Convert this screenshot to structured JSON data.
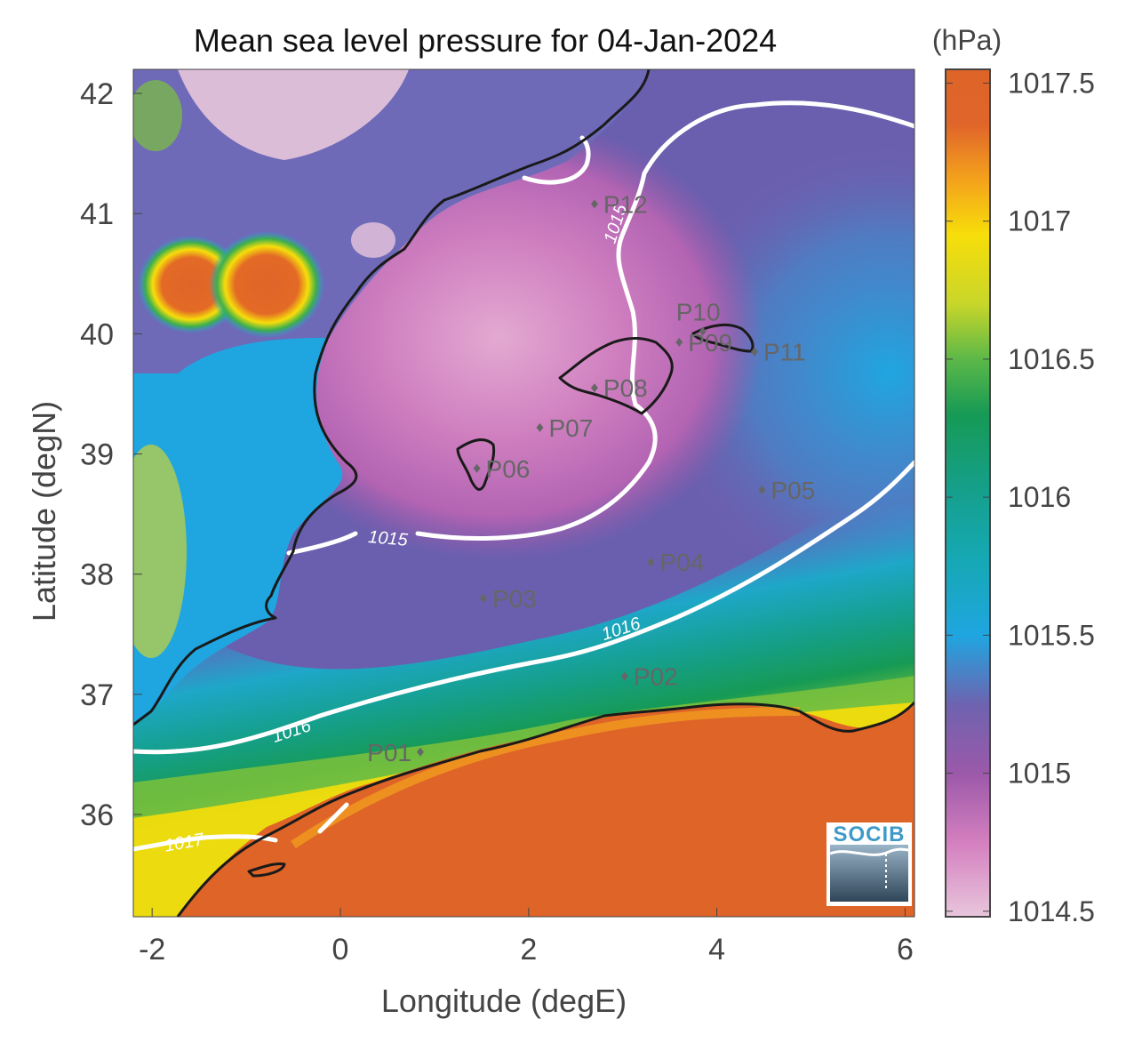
{
  "title": "Mean sea level pressure for 04-Jan-2024",
  "x_axis": {
    "label": "Longitude (degE)",
    "ticks": [
      "-2",
      "0",
      "2",
      "4",
      "6"
    ],
    "values": [
      -2,
      0,
      2,
      4,
      6
    ],
    "range": [
      -2.2,
      6.1
    ]
  },
  "y_axis": {
    "label": "Latitude (degN)",
    "ticks": [
      "36",
      "37",
      "38",
      "39",
      "40",
      "41",
      "42"
    ],
    "values": [
      36,
      37,
      38,
      39,
      40,
      41,
      42
    ],
    "range": [
      35.15,
      42.2
    ]
  },
  "colorbar": {
    "unit": "(hPa)",
    "ticks": [
      "1014.5",
      "1015",
      "1015.5",
      "1016",
      "1016.5",
      "1017",
      "1017.5"
    ],
    "values": [
      1014.5,
      1015,
      1015.5,
      1016,
      1016.5,
      1017,
      1017.5
    ],
    "range": [
      1014.48,
      1017.55
    ],
    "stops": [
      {
        "value": 1014.48,
        "color": "#e8c6dc"
      },
      {
        "value": 1014.75,
        "color": "#d47fbf"
      },
      {
        "value": 1015.0,
        "color": "#9b59a9"
      },
      {
        "value": 1015.25,
        "color": "#6e63b0"
      },
      {
        "value": 1015.5,
        "color": "#1fa6e0"
      },
      {
        "value": 1015.8,
        "color": "#15a8b0"
      },
      {
        "value": 1016.0,
        "color": "#15a090"
      },
      {
        "value": 1016.3,
        "color": "#169a55"
      },
      {
        "value": 1016.5,
        "color": "#5cb848"
      },
      {
        "value": 1016.7,
        "color": "#c8d62a"
      },
      {
        "value": 1016.95,
        "color": "#f7de0a"
      },
      {
        "value": 1017.15,
        "color": "#f4a21c"
      },
      {
        "value": 1017.35,
        "color": "#e0652a"
      },
      {
        "value": 1017.55,
        "color": "#de6428"
      }
    ]
  },
  "stations": [
    {
      "id": "P01",
      "lon": 0.85,
      "lat": 36.52
    },
    {
      "id": "P02",
      "lon": 3.02,
      "lat": 37.15
    },
    {
      "id": "P03",
      "lon": 1.52,
      "lat": 37.8
    },
    {
      "id": "P04",
      "lon": 3.3,
      "lat": 38.1
    },
    {
      "id": "P05",
      "lon": 4.48,
      "lat": 38.7
    },
    {
      "id": "P06",
      "lon": 1.45,
      "lat": 38.88
    },
    {
      "id": "P07",
      "lon": 2.12,
      "lat": 39.22
    },
    {
      "id": "P08",
      "lon": 2.7,
      "lat": 39.55
    },
    {
      "id": "P09",
      "lon": 3.6,
      "lat": 39.93
    },
    {
      "id": "P10",
      "lon": 3.85,
      "lat": 40.02
    },
    {
      "id": "P11",
      "lon": 4.4,
      "lat": 39.85
    },
    {
      "id": "P12",
      "lon": 2.7,
      "lat": 41.08
    }
  ],
  "contour_labels": [
    {
      "text": "1015",
      "lon": 0.5,
      "lat": 38.25
    },
    {
      "text": "1015",
      "lon": 2.98,
      "lat": 40.9
    },
    {
      "text": "1016",
      "lon": 3.0,
      "lat": 37.5
    },
    {
      "text": "1016",
      "lon": -0.5,
      "lat": 36.65
    },
    {
      "text": "1017",
      "lon": -1.65,
      "lat": 35.72
    }
  ],
  "logo": {
    "text": "SOCIB"
  },
  "colors": {
    "coastline": "#1a1a1a",
    "contour": "#ffffff",
    "land_africa": "#de6428",
    "station_marker": "#666666"
  }
}
